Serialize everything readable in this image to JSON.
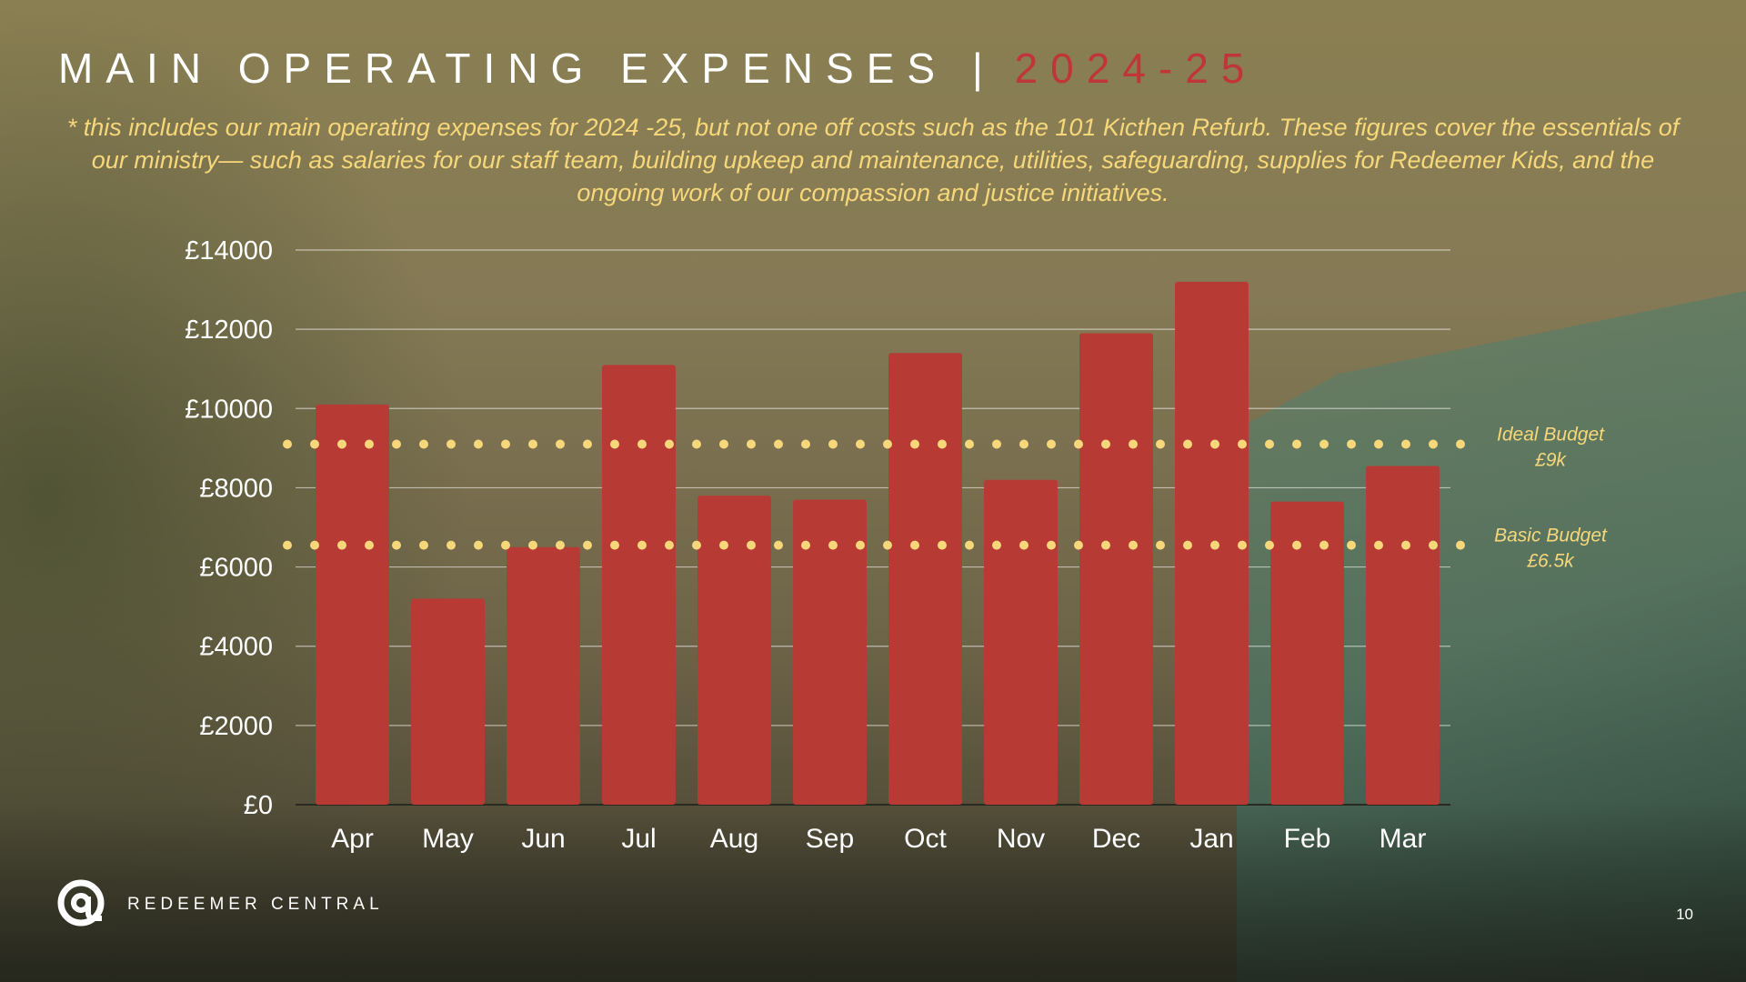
{
  "slide": {
    "title_main": "MAIN OPERATING EXPENSES",
    "title_separator": "|",
    "title_year": "2024-25",
    "subtitle": "* this includes our main operating expenses for 2024 -25, but not one off costs such as the 101 Kicthen Refurb. These figures cover the essentials of our ministry— such as salaries for our staff team, building upkeep and maintenance, utilities, safeguarding, supplies for Redeemer Kids, and the ongoing work of our compassion and justice initiatives.",
    "brand": "REDEEMER CENTRAL",
    "page_number": "10",
    "logo_icon": "at-sign-logo-icon"
  },
  "colors": {
    "bar": "#b83a35",
    "budget_line": "#f6d77a",
    "title_year": "#c0353a",
    "subtitle": "#f6d77a"
  },
  "chart_data": {
    "type": "bar",
    "categories": [
      "Apr",
      "May",
      "Jun",
      "Jul",
      "Aug",
      "Sep",
      "Oct",
      "Nov",
      "Dec",
      "Jan",
      "Feb",
      "Mar"
    ],
    "values": [
      10100,
      5200,
      6500,
      11100,
      7800,
      7700,
      11400,
      8200,
      11900,
      13200,
      7650,
      8550
    ],
    "ylim": [
      0,
      14000
    ],
    "yticks": [
      0,
      2000,
      4000,
      6000,
      8000,
      10000,
      12000,
      14000
    ],
    "ytick_labels": [
      "£0",
      "£2000",
      "£4000",
      "£6000",
      "£8000",
      "£10000",
      "£12000",
      "£14000"
    ],
    "grid": true,
    "reference_lines": [
      {
        "value": 9100,
        "label_line1": "Ideal Budget",
        "label_line2": "£9k"
      },
      {
        "value": 6550,
        "label_line1": "Basic Budget",
        "label_line2": "£6.5k"
      }
    ]
  }
}
